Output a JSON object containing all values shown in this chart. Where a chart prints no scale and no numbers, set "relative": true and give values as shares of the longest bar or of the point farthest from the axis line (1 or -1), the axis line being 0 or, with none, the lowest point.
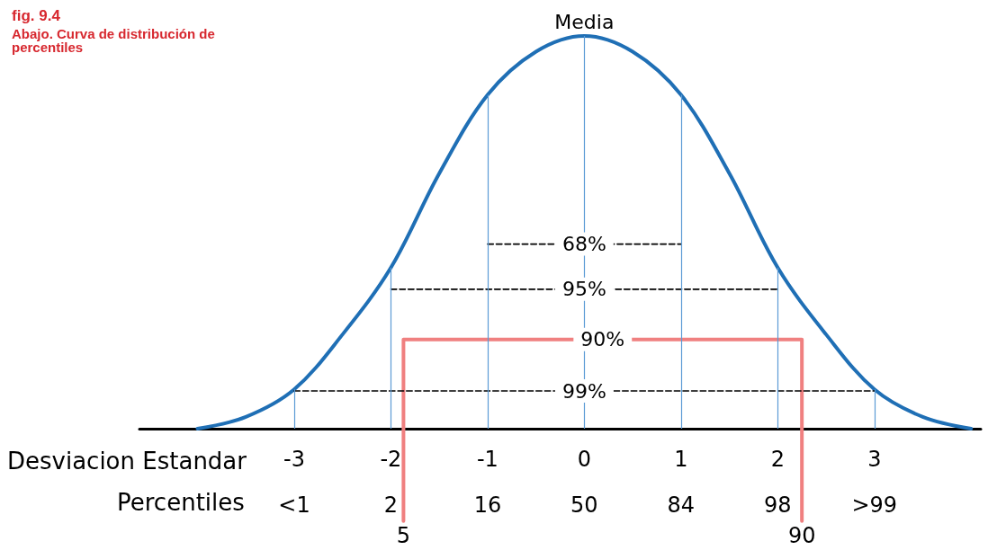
{
  "chart_data": {
    "type": "line",
    "title": "fig. 9.4",
    "subtitle": "Abajo. Curva de distribución de percentiles",
    "xlabel": "Desviacion Estandar",
    "relative": true,
    "marker": "none",
    "line_style": "solid",
    "grid": false,
    "legend": false,
    "x": [
      -4,
      -3.5,
      -3,
      -2.5,
      -2,
      -1.5,
      -1,
      -0.5,
      0,
      0.5,
      1,
      1.5,
      2,
      2.5,
      3,
      3.5,
      4
    ],
    "series": [
      {
        "color": "#1f6fb5",
        "values": [
          0,
          0.03,
          0.1,
          0.24,
          0.41,
          0.65,
          0.85,
          0.96,
          1,
          0.96,
          0.85,
          0.65,
          0.41,
          0.24,
          0.1,
          0.03,
          0
        ]
      },
      {
        "name": "68%",
        "type": "line",
        "line_style": "dashed",
        "color": "#000000",
        "x": [
          -1,
          1
        ],
        "values": [
          0.47,
          0.47
        ]
      },
      {
        "name": "95%",
        "type": "line",
        "line_style": "dashed",
        "color": "#000000",
        "x": [
          -2,
          2
        ],
        "values": [
          0.355,
          0.355
        ]
      },
      {
        "name": "90%",
        "type": "line",
        "line_style": "solid",
        "color": "#f08080",
        "x": [
          -1.87,
          -1.87,
          2.25,
          2.25
        ],
        "values": [
          -0.235,
          0.227,
          0.227,
          -0.235
        ]
      },
      {
        "name": "99%",
        "type": "line",
        "line_style": "dashed",
        "color": "#000000",
        "x": [
          -3,
          3
        ],
        "values": [
          0.096,
          0.096
        ]
      }
    ],
    "xlim": [
      -4.6,
      4.1
    ],
    "xticks": [
      -3,
      -2,
      -1,
      0,
      1,
      2,
      3
    ],
    "ref_lines": [
      {
        "axis": "x",
        "value": -3,
        "label": null,
        "color": "#5b9bd5"
      },
      {
        "axis": "x",
        "value": -2,
        "label": null,
        "color": "#5b9bd5"
      },
      {
        "axis": "x",
        "value": -1,
        "label": null,
        "color": "#5b9bd5"
      },
      {
        "axis": "x",
        "value": 0,
        "label": "Media",
        "color": "#5b9bd5"
      },
      {
        "axis": "x",
        "value": 1,
        "label": null,
        "color": "#5b9bd5"
      },
      {
        "axis": "x",
        "value": 2,
        "label": null,
        "color": "#5b9bd5"
      },
      {
        "axis": "x",
        "value": 3,
        "label": null,
        "color": "#5b9bd5"
      }
    ],
    "annotations": [
      "Percentiles",
      "<1",
      "2",
      "16",
      "50",
      "84",
      "98",
      ">99",
      {
        "text": "5",
        "x": -1.87,
        "y": -0.235
      },
      {
        "text": "90",
        "x": 2.25,
        "y": -0.235
      }
    ]
  }
}
